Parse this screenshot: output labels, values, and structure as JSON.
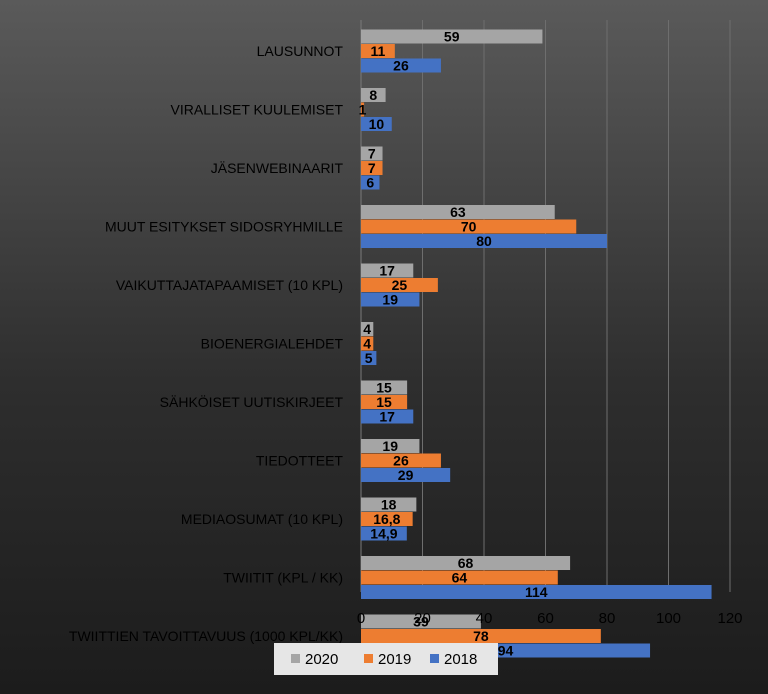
{
  "chart_data": {
    "type": "bar",
    "orientation": "horizontal",
    "categories": [
      "LAUSUNNOT",
      "VIRALLISET KUULEMISET",
      "JÄSENWEBINAARIT",
      "MUUT ESITYKSET SIDOSRYHMILLE",
      "VAIKUTTAJATAPAAMISET (10 KPL)",
      "BIOENERGIALEHDET",
      "SÄHKÖISET UUTISKIRJEET",
      "TIEDOTTEET",
      "MEDIAOSUMAT (10 KPL)",
      "TWIITIT (KPL / KK)",
      "TWIITTIEN TAVOITTAVUUS (1000 KPL/KK)"
    ],
    "series": [
      {
        "name": "2020",
        "color": "#a5a5a5",
        "values": [
          59,
          8,
          7,
          63,
          17,
          4,
          15,
          19,
          18,
          68,
          39
        ],
        "labels": [
          "59",
          "8",
          "7",
          "63",
          "17",
          "4",
          "15",
          "19",
          "18",
          "68",
          "39"
        ]
      },
      {
        "name": "2019",
        "color": "#ed7d31",
        "values": [
          11,
          1,
          7,
          70,
          25,
          4,
          15,
          26,
          16.8,
          64,
          78
        ],
        "labels": [
          "11",
          "1",
          "7",
          "70",
          "25",
          "4",
          "15",
          "26",
          "16,8",
          "64",
          "78"
        ]
      },
      {
        "name": "2018",
        "color": "#4472c4",
        "values": [
          26,
          10,
          6,
          80,
          19,
          5,
          17,
          29,
          14.9,
          114,
          94
        ],
        "labels": [
          "26",
          "10",
          "6",
          "80",
          "19",
          "5",
          "17",
          "29",
          "14,9",
          "114",
          "94"
        ]
      }
    ],
    "xlim": [
      0,
      120
    ],
    "xticks": [
      0,
      20,
      40,
      60,
      80,
      100,
      120
    ],
    "grid": "vertical",
    "legend": "bottom",
    "title": "",
    "xlabel": "",
    "ylabel": ""
  }
}
